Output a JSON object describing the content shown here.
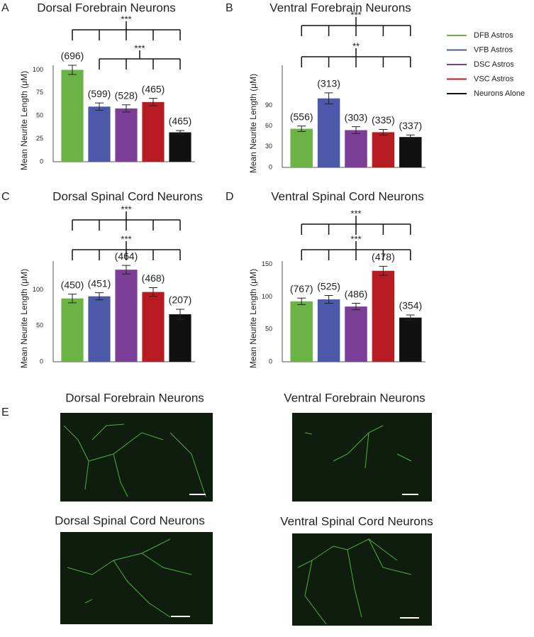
{
  "chart_data": [
    {
      "type": "bar",
      "panel": "A",
      "title": "Dorsal Forebrain Neurons",
      "ylabel": "Mean Neurite Length (μM)",
      "categories": [
        null,
        null,
        null,
        null,
        null
      ],
      "values": [
        100,
        60,
        58,
        65,
        32
      ],
      "errors": [
        5,
        4,
        4,
        4,
        2
      ],
      "colors": [
        "#6ab344",
        "#4b59a8",
        "#7c3f98",
        "#b71c23",
        "#111111"
      ],
      "annotations": [
        "(696)",
        "(599)",
        "(528)",
        "(465)",
        "(465)"
      ],
      "significance": [
        "***",
        "***"
      ],
      "ylim": [
        0,
        105
      ],
      "yticks": [
        0,
        25,
        50,
        75,
        100
      ]
    },
    {
      "type": "bar",
      "panel": "B",
      "title": "Ventral Forebrain Neurons",
      "ylabel": "Mean Neurite Length (μM)",
      "categories": [
        null,
        null,
        null,
        null,
        null
      ],
      "values": [
        56,
        100,
        54,
        51,
        44
      ],
      "errors": [
        4,
        8,
        5,
        4,
        3
      ],
      "colors": [
        "#6ab344",
        "#4b59a8",
        "#7c3f98",
        "#b71c23",
        "#111111"
      ],
      "annotations": [
        "(556)",
        "(313)",
        "(303)",
        "(335)",
        "(337)"
      ],
      "significance": [
        "***",
        "**"
      ],
      "ylim": [
        0,
        148
      ],
      "yticks": [
        0,
        30,
        60,
        90
      ]
    },
    {
      "type": "bar",
      "panel": "C",
      "title": "Dorsal Spinal Cord Neurons",
      "ylabel": "Mean Neurite Length (μM)",
      "categories": [
        null,
        null,
        null,
        null,
        null
      ],
      "values": [
        88,
        91,
        128,
        97,
        66
      ],
      "errors": [
        6,
        5,
        6,
        6,
        7
      ],
      "colors": [
        "#6ab344",
        "#4b59a8",
        "#7c3f98",
        "#b71c23",
        "#111111"
      ],
      "annotations": [
        "(450)",
        "(451)",
        "(464)",
        "(468)",
        "(207)"
      ],
      "significance": [
        "***",
        "***"
      ],
      "ylim": [
        0,
        140
      ],
      "yticks": [
        0,
        50,
        100
      ]
    },
    {
      "type": "bar",
      "panel": "D",
      "title": "Ventral Spinal Cord Neurons",
      "ylabel": "Mean Neurite Length (μM)",
      "categories": [
        null,
        null,
        null,
        null,
        null
      ],
      "values": [
        93,
        96,
        85,
        140,
        68
      ],
      "errors": [
        5,
        6,
        5,
        7,
        4
      ],
      "colors": [
        "#6ab344",
        "#4b59a8",
        "#7c3f98",
        "#b71c23",
        "#111111"
      ],
      "annotations": [
        "(767)",
        "(525)",
        "(486)",
        "(478)",
        "(354)"
      ],
      "significance": [
        "***",
        "***"
      ],
      "ylim": [
        0,
        155
      ],
      "yticks": [
        0,
        50,
        100,
        150
      ]
    }
  ],
  "legend": [
    {
      "name": "DFB Astros",
      "color": "#6ab344"
    },
    {
      "name": "VFB Astros",
      "color": "#4b59a8"
    },
    {
      "name": "DSC Astros",
      "color": "#7c3f98"
    },
    {
      "name": "VSC Astros",
      "color": "#b71c23"
    },
    {
      "name": "Neurons Alone",
      "color": "#111111"
    }
  ],
  "panel_e": {
    "label": "E",
    "images": [
      {
        "title": "Dorsal Forebrain Neurons"
      },
      {
        "title": "Ventral Forebrain Neurons"
      },
      {
        "title": "Dorsal Spinal Cord Neurons"
      },
      {
        "title": "Ventral Spinal Cord Neurons"
      }
    ]
  }
}
